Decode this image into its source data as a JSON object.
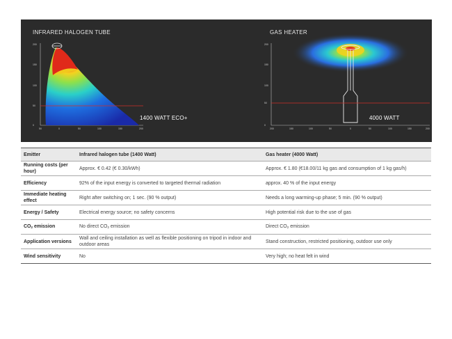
{
  "hero": {
    "left_title": "INFRARED HALOGEN TUBE",
    "right_title": "GAS HEATER",
    "left_plot_label": "1400 WATT ECO+",
    "right_plot_label": "4000 WATT",
    "left_yticks": [
      "0",
      "50",
      "100",
      "150",
      "200"
    ],
    "left_xticks": [
      "50",
      "0",
      "50",
      "100",
      "150",
      "200"
    ],
    "right_yticks": [
      "0",
      "50",
      "100",
      "150",
      "200"
    ],
    "right_xticks": [
      "200",
      "150",
      "100",
      "50",
      "0",
      "50",
      "100",
      "150",
      "200"
    ],
    "colors": {
      "background": "#2b2b2b",
      "threshold_line": "#d0302a"
    }
  },
  "table": {
    "headers": [
      "Emitter",
      "Infrared halogen tube (1400 Watt)",
      "Gas heater (4000 Watt)"
    ],
    "rows": [
      {
        "label": "Running costs (per hour)",
        "ir": "Approx. € 0.42 (€ 0.30/kWh)",
        "gas": "Approx. € 1.80 (€18.00/11 kg gas and consumption of 1 kg gas/h)"
      },
      {
        "label": "Efficiency",
        "ir": "92% of the input energy is converted to targeted thermal radiation",
        "gas": "approx. 40 % of the input energy"
      },
      {
        "label": "Immediate heating effect",
        "ir": "Right after switching on; 1 sec. (90 % output)",
        "gas": "Needs a long warming-up phase; 5 min. (90 % output)"
      },
      {
        "label": "Energy / Safety",
        "ir": "Electrical energy source; no safety concerns",
        "gas": "High potential risk due to the use of gas"
      },
      {
        "label_pre": "CO",
        "label_sub": "2",
        "label_post": " emission",
        "ir_pre": "No direct CO",
        "ir_sub": "2",
        "ir_post": " emission",
        "gas_pre": "Direct CO",
        "gas_sub": "2",
        "gas_post": " emission"
      },
      {
        "label": "Application versions",
        "ir": "Wall and ceiling installation as well as flexible positioning on tripod in indoor and outdoor areas",
        "gas": "Stand construction, restricted positioning, outdoor use only"
      },
      {
        "label": "Wind sensitivity",
        "ir": "No",
        "gas": "Very high; no heat felt in wind"
      }
    ]
  }
}
